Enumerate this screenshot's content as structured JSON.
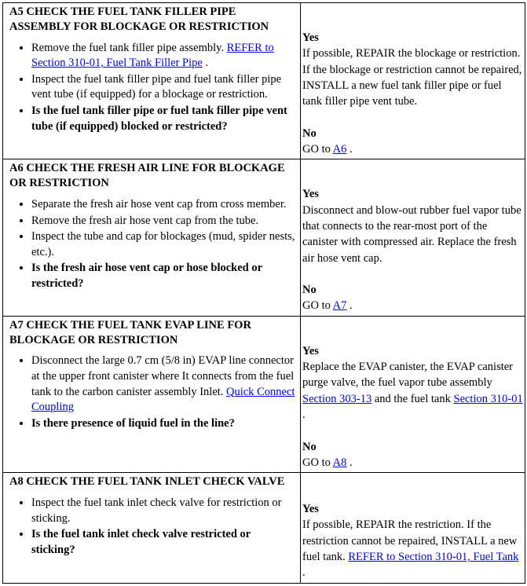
{
  "labels": {
    "yes": "Yes",
    "no": "No"
  },
  "links": {
    "refer_310_01_filler": "REFER to Section 310-01, Fuel Tank Filler Pipe",
    "quick_connect": "Quick Connect Coupling",
    "section_303_13": "Section 303-13",
    "section_310_01": "Section 310-01",
    "refer_310_01_tank": "REFER to Section 310-01, Fuel Tank",
    "goto_a6": "A6",
    "goto_a7": "A7",
    "goto_a8": "A8"
  },
  "a5": {
    "title": "A5 CHECK THE FUEL TANK FILLER PIPE ASSEMBLY FOR BLOCKAGE OR RESTRICTION",
    "b1_pre": "Remove the fuel tank filler pipe assembly. ",
    "b1_post": " .",
    "b2": "Inspect the fuel tank filler pipe and fuel tank filler pipe vent tube (if equipped) for a blockage or restriction.",
    "b3": "Is the fuel tank filler pipe or fuel tank filler pipe vent tube (if equipped) blocked or restricted?",
    "yes_text": "If possible, REPAIR the blockage or restriction. If the blockage or restriction cannot be repaired, INSTALL a new fuel tank filler pipe or fuel tank filler pipe vent tube.",
    "no_pre": "GO to ",
    "no_post": " ."
  },
  "a6": {
    "title": "A6 CHECK THE FRESH AIR LINE FOR BLOCKAGE OR RESTRICTION",
    "b1": "Separate the fresh air hose vent cap from cross member.",
    "b2": "Remove the fresh air hose vent cap from the tube.",
    "b3": "Inspect the tube and cap for blockages (mud,  spider nests, etc.).",
    "b4": "Is the fresh air hose vent cap or hose blocked or restricted?",
    "yes_text": "Disconnect and blow-out rubber fuel vapor tube that connects to the rear-most port of the canister with compressed air. Replace the fresh air hose vent cap.",
    "no_pre": "GO to ",
    "no_post": " ."
  },
  "a7": {
    "title": "A7 CHECK THE FUEL TANK EVAP LINE FOR BLOCKAGE OR RESTRICTION",
    "b1_pre": "Disconnect the large 0.7 cm (5/8 in) EVAP line connector at the upper front canister where It connects from the fuel tank to the carbon canister assembly Inlet. ",
    "b2": "Is there presence of liquid fuel in the line?",
    "yes_pre": "Replace the EVAP canister, the EVAP canister purge valve, the fuel vapor tube assembly ",
    "yes_mid": " and the fuel tank ",
    "yes_post": " .",
    "no_pre": "GO to ",
    "no_post": " ."
  },
  "a8": {
    "title": "A8 CHECK THE FUEL TANK INLET CHECK VALVE",
    "b1": "Inspect the fuel tank inlet check valve for restriction or sticking.",
    "b2": "Is the fuel tank inlet check valve restricted or sticking?",
    "yes_pre": "If possible, REPAIR the restriction. If the restriction cannot be repaired, INSTALL a new fuel tank. ",
    "yes_post": " ."
  }
}
